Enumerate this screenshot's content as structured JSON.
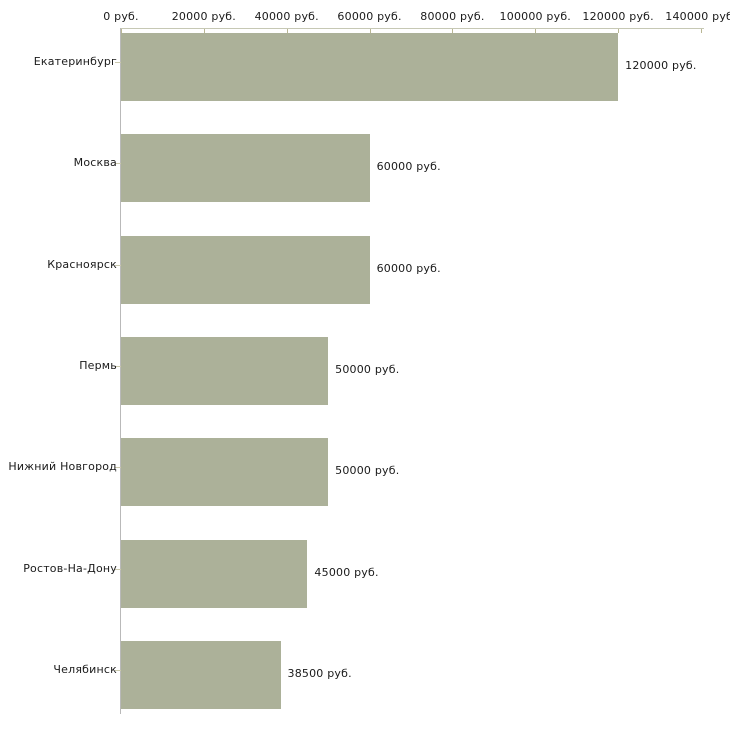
{
  "chart_data": {
    "type": "bar",
    "orientation": "horizontal",
    "title": "",
    "xlabel": "",
    "ylabel": "",
    "unit_suffix": " руб.",
    "categories": [
      "Екатеринбург",
      "Москва",
      "Красноярск",
      "Пермь",
      "Нижний Новгород",
      "Ростов-На-Дону",
      "Челябинск"
    ],
    "values": [
      120000,
      60000,
      60000,
      50000,
      50000,
      45000,
      38500
    ],
    "value_labels": [
      "120000 руб.",
      "60000 руб.",
      "60000 руб.",
      "50000 руб.",
      "50000 руб.",
      "45000 руб.",
      "38500 руб."
    ],
    "x_tick_values": [
      0,
      20000,
      40000,
      60000,
      80000,
      100000,
      120000,
      140000
    ],
    "x_tick_labels": [
      "0 руб.",
      "20000 руб.",
      "40000 руб.",
      "60000 руб.",
      "80000 руб.",
      "100000 руб.",
      "120000 руб.",
      "140000 руб."
    ],
    "xlim": [
      0,
      140000
    ],
    "grid": false,
    "legend": false,
    "colors": {
      "bar": "#acb199",
      "x_axis_line": "#c6c8b4",
      "x_tick": "#b9b694",
      "y_axis_line": "#b9b9b9",
      "y_tick": "#cbc9ae",
      "text": "#1a1a1a",
      "background": "#ffffff"
    }
  }
}
